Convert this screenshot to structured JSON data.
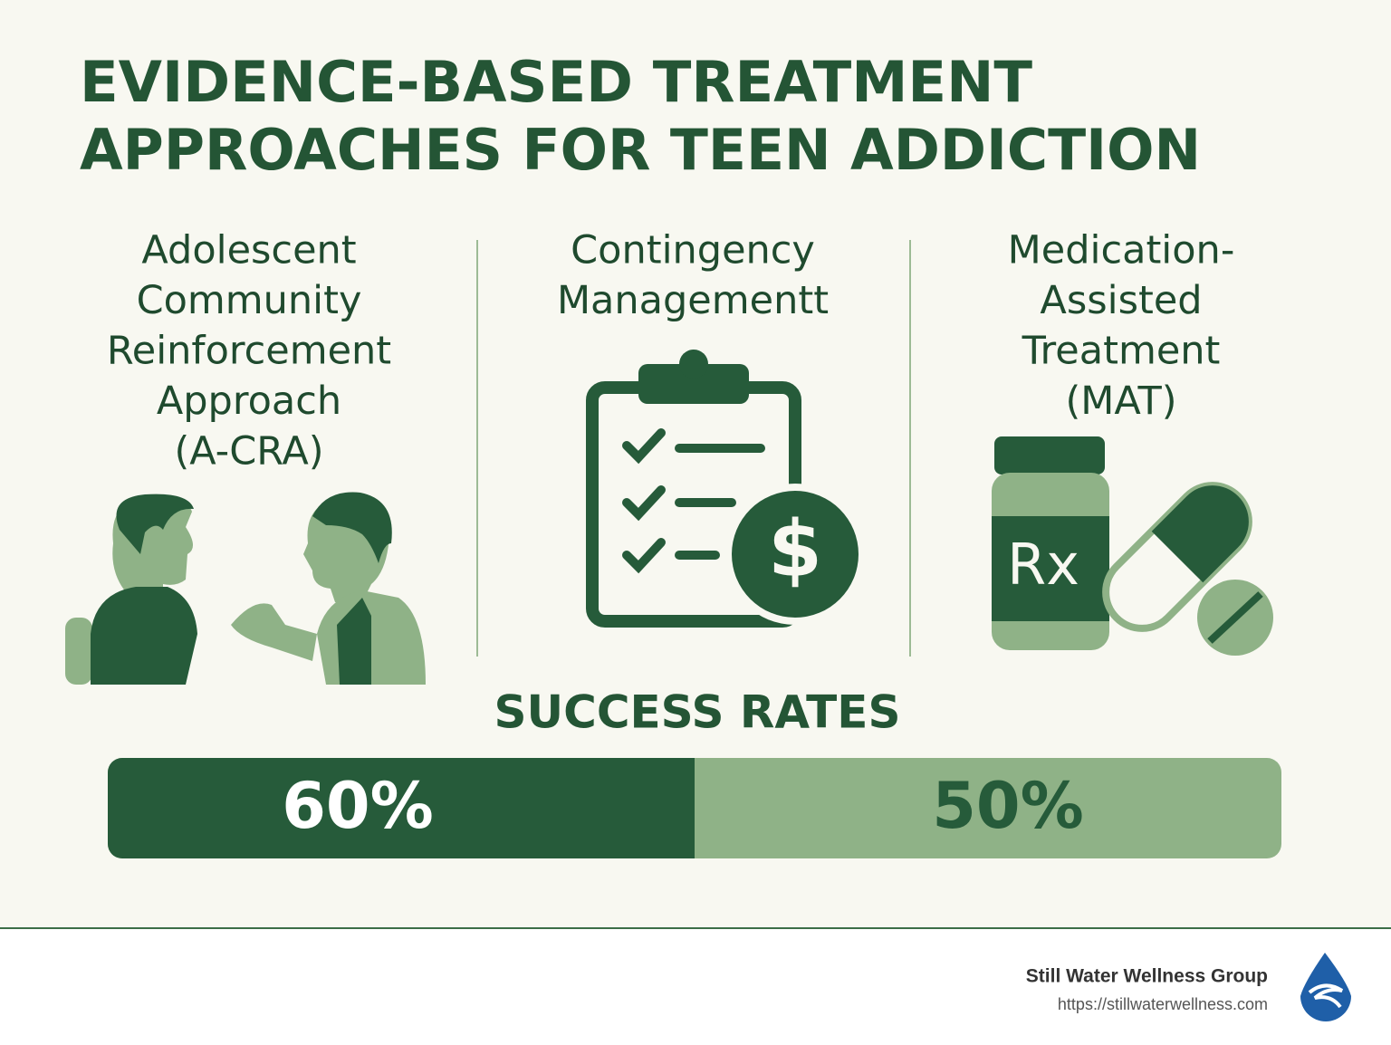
{
  "header": {
    "title_lines": [
      "EVIDENCE-BASED TREATMENT",
      "APPROACHES FOR TEEN ADDICTION"
    ]
  },
  "approaches": [
    {
      "lines": [
        "Adolescent",
        "Community",
        "Reinforcement",
        "Approach",
        "(A-CRA)"
      ]
    },
    {
      "lines": [
        "Contingency",
        "Managementt"
      ]
    },
    {
      "lines": [
        "Medication-",
        "Assisted",
        "Treatment",
        "(MAT)"
      ]
    }
  ],
  "success_rates": {
    "title": "SUCCESS RATES",
    "items": [
      {
        "label": "60%"
      },
      {
        "label": "50%"
      }
    ]
  },
  "footer": {
    "organization": "Still Water Wellness Group",
    "url": "https://stillwaterwellness.com"
  },
  "icon_text": {
    "rx": "Rx"
  }
}
